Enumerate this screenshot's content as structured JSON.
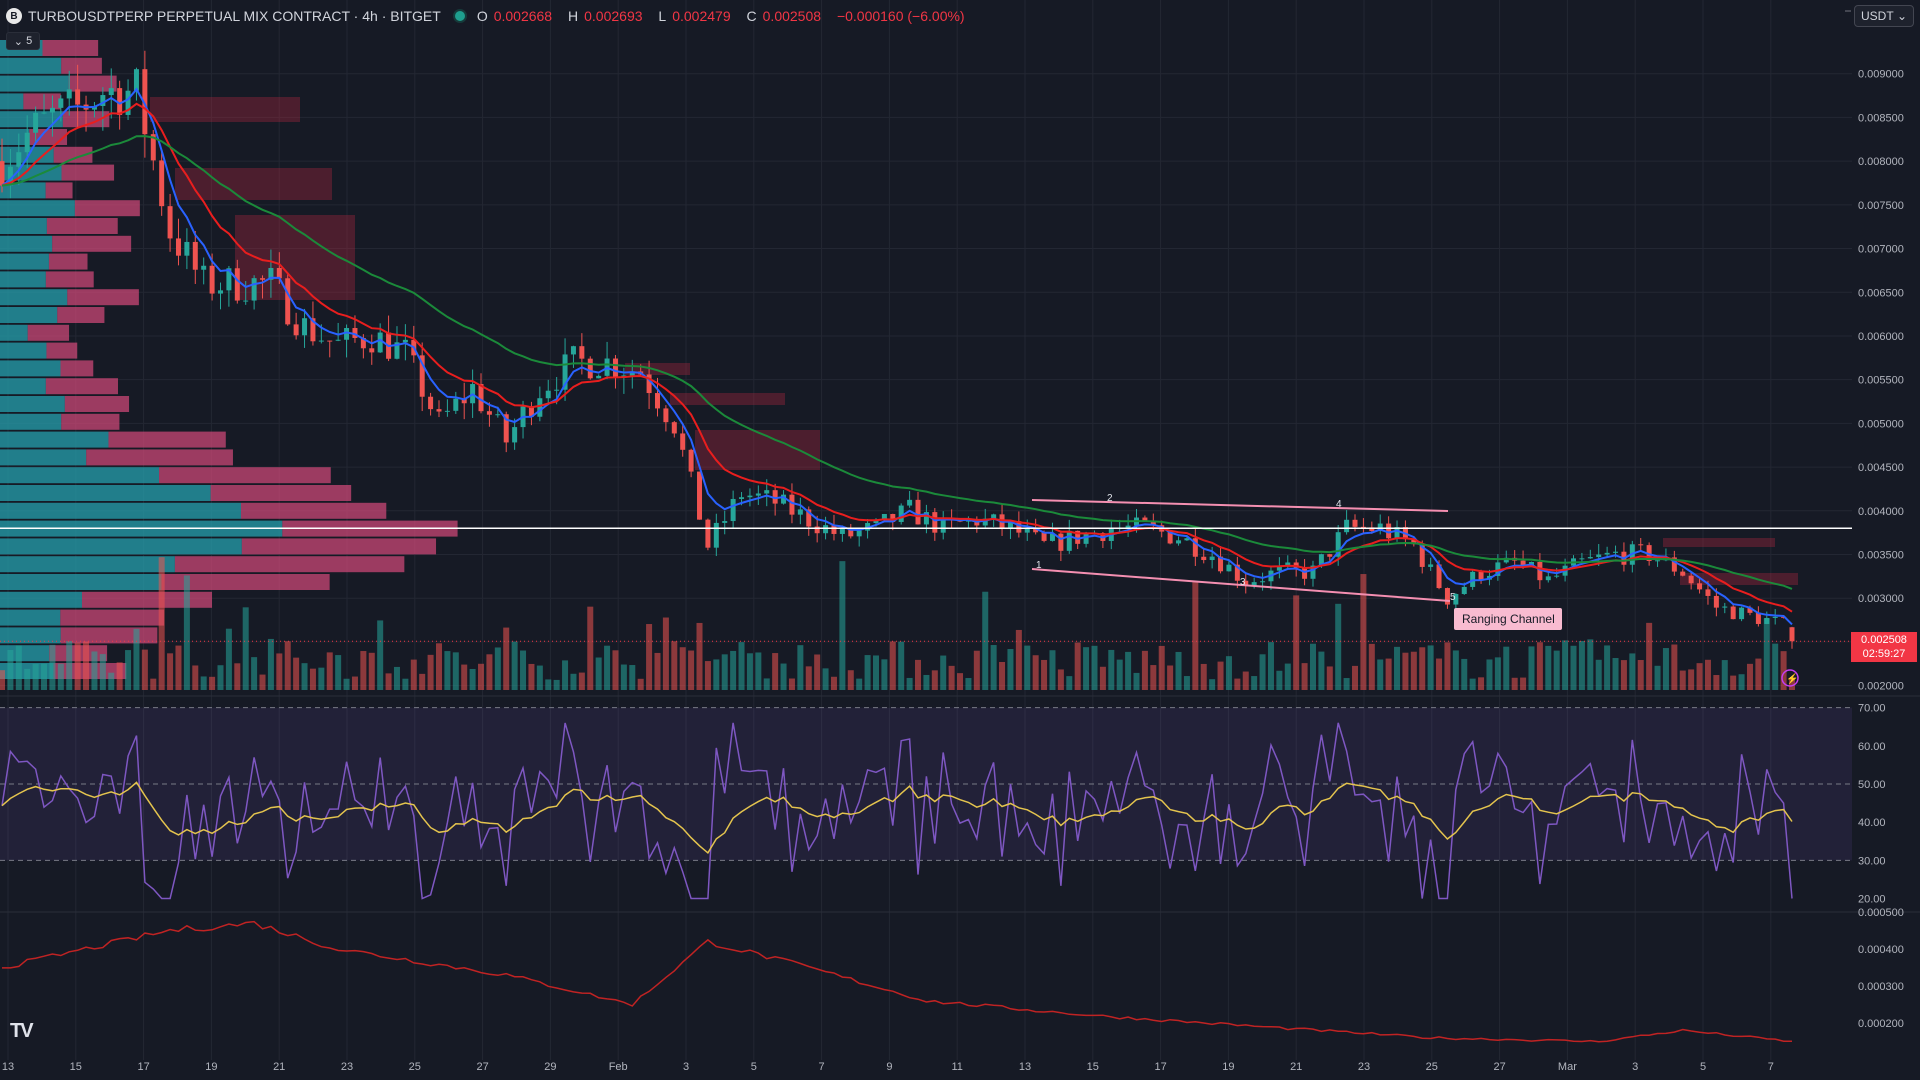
{
  "header": {
    "logo_letter": "B",
    "symbol": "TURBOUSDTPERP PERPETUAL MIX CONTRACT · 4h · BITGET",
    "ohlc": [
      {
        "k": "O",
        "v": "0.002668"
      },
      {
        "k": "H",
        "v": "0.002693"
      },
      {
        "k": "L",
        "v": "0.002479"
      },
      {
        "k": "C",
        "v": "0.002508"
      },
      {
        "k": "",
        "v": "−0.000160 (−6.00%)"
      }
    ],
    "collapse_label": "5"
  },
  "currency": {
    "label": "USDT"
  },
  "last_price": {
    "value": "0.002508",
    "countdown": "02:59:27"
  },
  "colors": {
    "bg": "#161a25",
    "up": "#26a69a",
    "down": "#ef5350",
    "ema_fast": "#2962ff",
    "ema_mid": "#e91e1e",
    "ema_slow": "#1b8a3a",
    "rsi": "#7e57c2",
    "rsi_ma": "#e4c44e",
    "lower": "#c02323",
    "pattern": "#f48fb1",
    "hline": "#ffffff"
  },
  "chart_data": [
    {
      "type": "candlestick",
      "title": "",
      "ylim": [
        0.00195,
        0.0095
      ],
      "y_ticks": [
        "0.009000",
        "0.008500",
        "0.008000",
        "0.007500",
        "0.007000",
        "0.006500",
        "0.006000",
        "0.005500",
        "0.005000",
        "0.004500",
        "0.004000",
        "0.003500",
        "0.003000",
        "0.002500",
        "0.002000"
      ],
      "x_ticks": [
        "13",
        "15",
        "17",
        "19",
        "21",
        "23",
        "25",
        "27",
        "29",
        "Feb",
        "3",
        "5",
        "7",
        "9",
        "11",
        "13",
        "15",
        "17",
        "19",
        "21",
        "23",
        "25",
        "27",
        "Mar",
        "3",
        "5",
        "7"
      ],
      "anchors": [
        [
          0,
          0.008
        ],
        [
          3,
          0.0083
        ],
        [
          6,
          0.0085
        ],
        [
          9,
          0.0086
        ],
        [
          12,
          0.0088
        ],
        [
          16,
          0.0088
        ],
        [
          20,
          0.0072
        ],
        [
          24,
          0.0066
        ],
        [
          28,
          0.0066
        ],
        [
          32,
          0.0066
        ],
        [
          36,
          0.0061
        ],
        [
          40,
          0.0059
        ],
        [
          44,
          0.006
        ],
        [
          48,
          0.0058
        ],
        [
          52,
          0.005
        ],
        [
          56,
          0.0054
        ],
        [
          60,
          0.0048
        ],
        [
          64,
          0.0054
        ],
        [
          68,
          0.0057
        ],
        [
          72,
          0.0057
        ],
        [
          76,
          0.0056
        ],
        [
          80,
          0.005
        ],
        [
          84,
          0.0036
        ],
        [
          88,
          0.0042
        ],
        [
          92,
          0.0041
        ],
        [
          96,
          0.0039
        ],
        [
          100,
          0.0037
        ],
        [
          104,
          0.0038
        ],
        [
          108,
          0.004
        ],
        [
          112,
          0.0038
        ],
        [
          116,
          0.0039
        ],
        [
          120,
          0.0038
        ],
        [
          124,
          0.0036
        ],
        [
          128,
          0.0037
        ],
        [
          132,
          0.0038
        ],
        [
          136,
          0.0038
        ],
        [
          140,
          0.0037
        ],
        [
          144,
          0.0035
        ],
        [
          148,
          0.0032
        ],
        [
          152,
          0.0033
        ],
        [
          156,
          0.0033
        ],
        [
          160,
          0.0038
        ],
        [
          164,
          0.0038
        ],
        [
          168,
          0.0036
        ],
        [
          172,
          0.003
        ],
        [
          176,
          0.0033
        ],
        [
          180,
          0.0034
        ],
        [
          184,
          0.0032
        ],
        [
          188,
          0.0034
        ],
        [
          192,
          0.0035
        ],
        [
          196,
          0.0035
        ],
        [
          200,
          0.0033
        ],
        [
          204,
          0.0029
        ],
        [
          208,
          0.0028
        ],
        [
          212,
          0.0027
        ],
        [
          213,
          0.002508
        ]
      ],
      "horizontal_line": 0.0038,
      "annotation": "Ranging Channel",
      "wave_labels": [
        "1",
        "2",
        "3",
        "4",
        "5"
      ]
    },
    {
      "type": "line",
      "title": "",
      "ylim": [
        17,
        72
      ],
      "y_ticks": [
        "70.00",
        "60.00",
        "50.00",
        "40.00",
        "30.00",
        "20.00"
      ],
      "bands": [
        30,
        50,
        70
      ]
    },
    {
      "type": "line",
      "title": "",
      "ylim": [
        0.0001,
        0.0005
      ],
      "y_ticks": [
        "0.000500",
        "0.000400",
        "0.000300",
        "0.000200"
      ]
    }
  ]
}
